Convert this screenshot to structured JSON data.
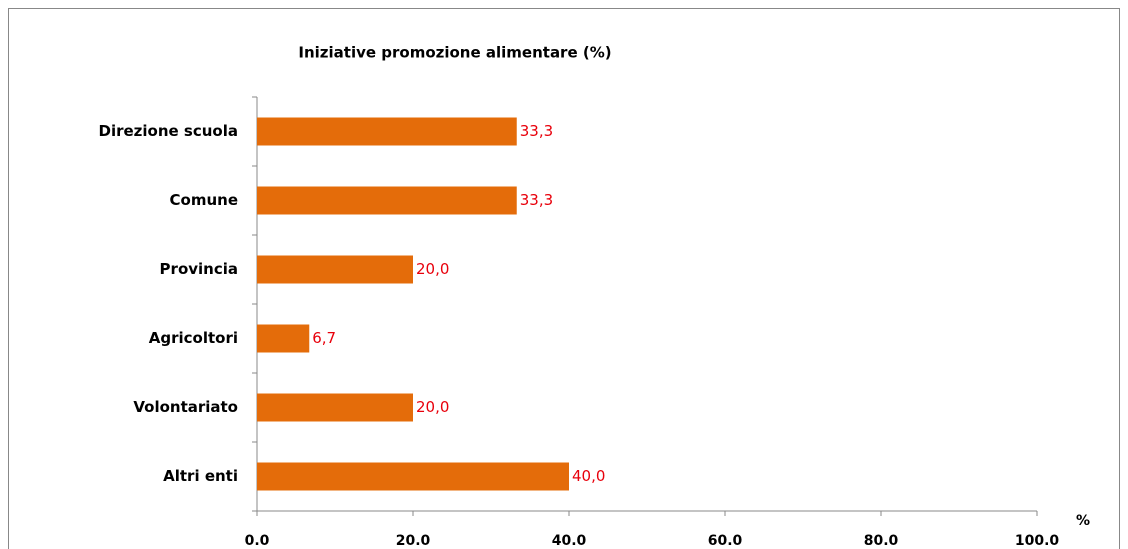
{
  "chart_data": {
    "type": "hbar",
    "title": "Iniziative promozione alimentare (%)",
    "categories": [
      "Direzione scuola",
      "Comune",
      "Provincia",
      "Agricoltori",
      "Volontariato",
      "Altri enti"
    ],
    "values": [
      33.3,
      33.3,
      20.0,
      6.7,
      20.0,
      40.0
    ],
    "value_labels": [
      "33,3",
      "33,3",
      "20,0",
      "6,7",
      "20,0",
      "40,0"
    ],
    "color": "#e46c0a",
    "label_color": "#e8000b",
    "x_label": "%",
    "xlim": [
      0,
      100
    ],
    "xticks": [
      {
        "value": 0,
        "label": "0.0"
      },
      {
        "value": 20,
        "label": "20.0"
      },
      {
        "value": 40,
        "label": "40.0"
      },
      {
        "value": 60,
        "label": "60.0"
      },
      {
        "value": 80,
        "label": "80.0"
      },
      {
        "value": 100,
        "label": "100.0"
      }
    ],
    "grid": false
  }
}
